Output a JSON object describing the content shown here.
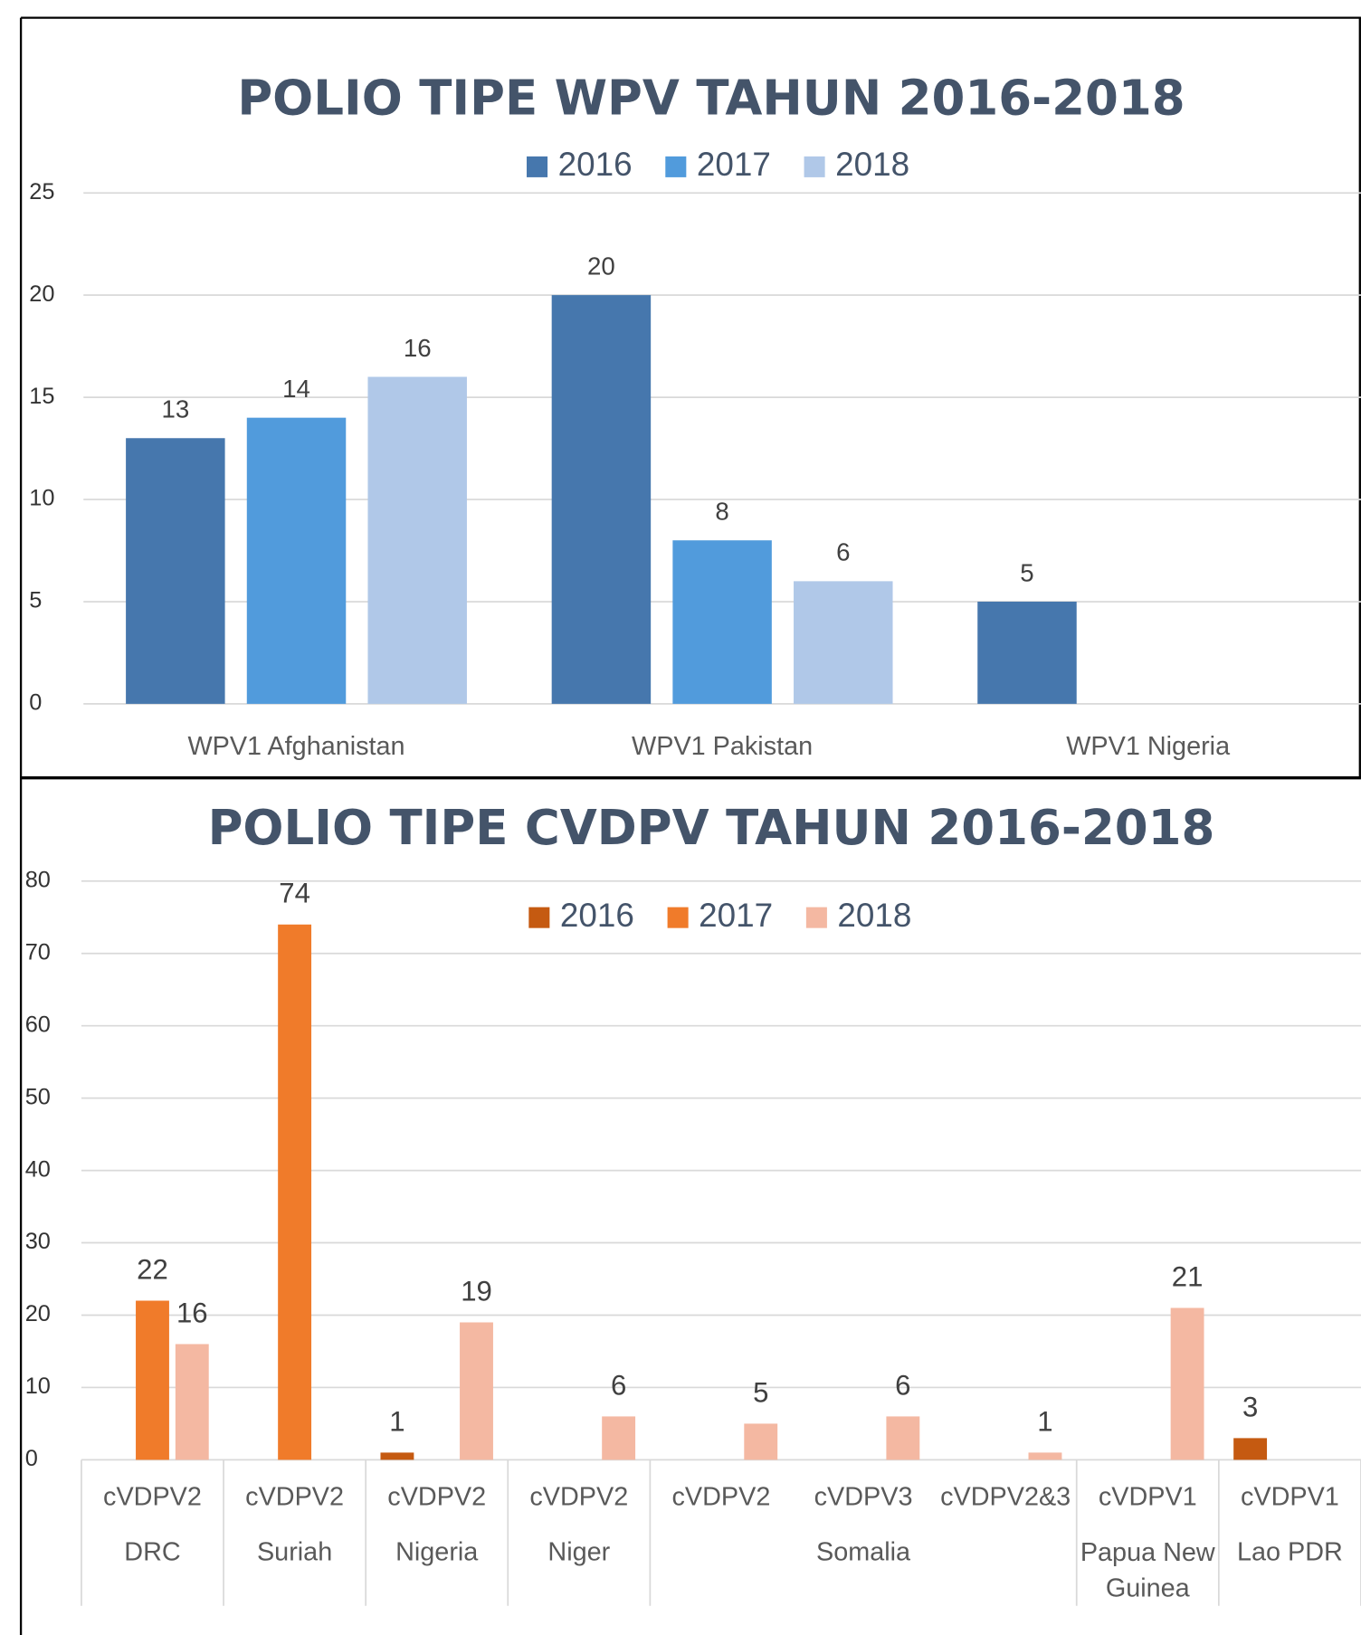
{
  "chart_data": [
    {
      "type": "bar",
      "title": "POLIO TIPE WPV TAHUN 2016-2018",
      "categories": [
        "WPV1 Afghanistan",
        "WPV1 Pakistan",
        "WPV1 Nigeria"
      ],
      "series": [
        {
          "name": "2016",
          "color": "#4677ad",
          "values": [
            13,
            20,
            5
          ]
        },
        {
          "name": "2017",
          "color": "#519bdc",
          "values": [
            14,
            8,
            null
          ]
        },
        {
          "name": "2018",
          "color": "#b0c8e8",
          "values": [
            16,
            6,
            null
          ]
        }
      ],
      "ylim": [
        0,
        25
      ],
      "yticks": [
        0,
        5,
        10,
        15,
        20,
        25
      ],
      "grid": true,
      "legend": "top"
    },
    {
      "type": "bar",
      "title": "POLIO TIPE CVDPV TAHUN 2016-2018",
      "categories": [
        "cVDPV2",
        "cVDPV2",
        "cVDPV2",
        "cVDPV2",
        "cVDPV2",
        "cVDPV3",
        "cVDPV2&3",
        "cVDPV1",
        "cVDPV1"
      ],
      "category_groups": [
        {
          "label": "DRC",
          "size": 1
        },
        {
          "label": "Suriah",
          "size": 1
        },
        {
          "label": "Nigeria",
          "size": 1
        },
        {
          "label": "Niger",
          "size": 1
        },
        {
          "label": "Somalia",
          "size": 3
        },
        {
          "label": "Papua New Guinea",
          "size": 1
        },
        {
          "label": "Lao PDR",
          "size": 1
        }
      ],
      "series": [
        {
          "name": "2016",
          "color": "#c55a11",
          "values": [
            null,
            null,
            1,
            null,
            null,
            null,
            null,
            null,
            3
          ]
        },
        {
          "name": "2017",
          "color": "#f07b2a",
          "values": [
            22,
            74,
            null,
            null,
            null,
            null,
            null,
            null,
            null
          ]
        },
        {
          "name": "2018",
          "color": "#f4b8a2",
          "values": [
            16,
            null,
            19,
            6,
            5,
            6,
            1,
            21,
            null
          ]
        }
      ],
      "ylim": [
        0,
        80
      ],
      "yticks": [
        0,
        10,
        20,
        30,
        40,
        50,
        60,
        70,
        80
      ],
      "grid": true,
      "legend": "top"
    }
  ]
}
